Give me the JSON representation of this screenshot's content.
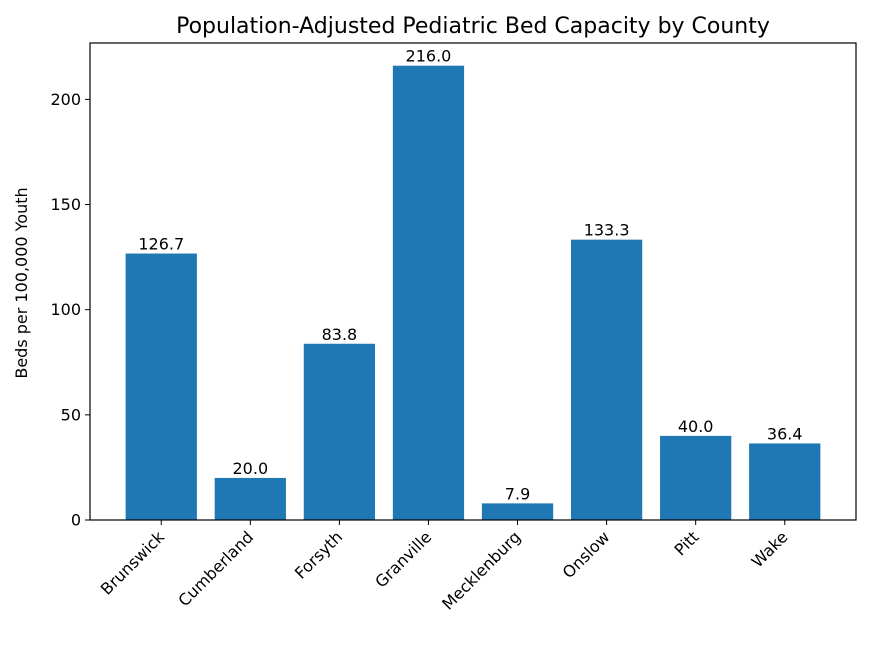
{
  "chart_data": {
    "type": "bar",
    "title": "Population-Adjusted Pediatric Bed Capacity by County",
    "xlabel": "",
    "ylabel": "Beds per 100,000 Youth",
    "categories": [
      "Brunswick",
      "Cumberland",
      "Forsyth",
      "Granville",
      "Mecklenburg",
      "Onslow",
      "Pitt",
      "Wake"
    ],
    "values": [
      126.7,
      20.0,
      83.8,
      216.0,
      7.9,
      133.3,
      40.0,
      36.4
    ],
    "data_labels": [
      "126.7",
      "20.0",
      "83.8",
      "216.0",
      "7.9",
      "133.3",
      "40.0",
      "36.4"
    ],
    "yticks": [
      0,
      50,
      100,
      150,
      200
    ],
    "ylim": [
      0,
      226.8
    ],
    "bar_color": "#1f77b4",
    "grid": false,
    "legend": "none"
  }
}
